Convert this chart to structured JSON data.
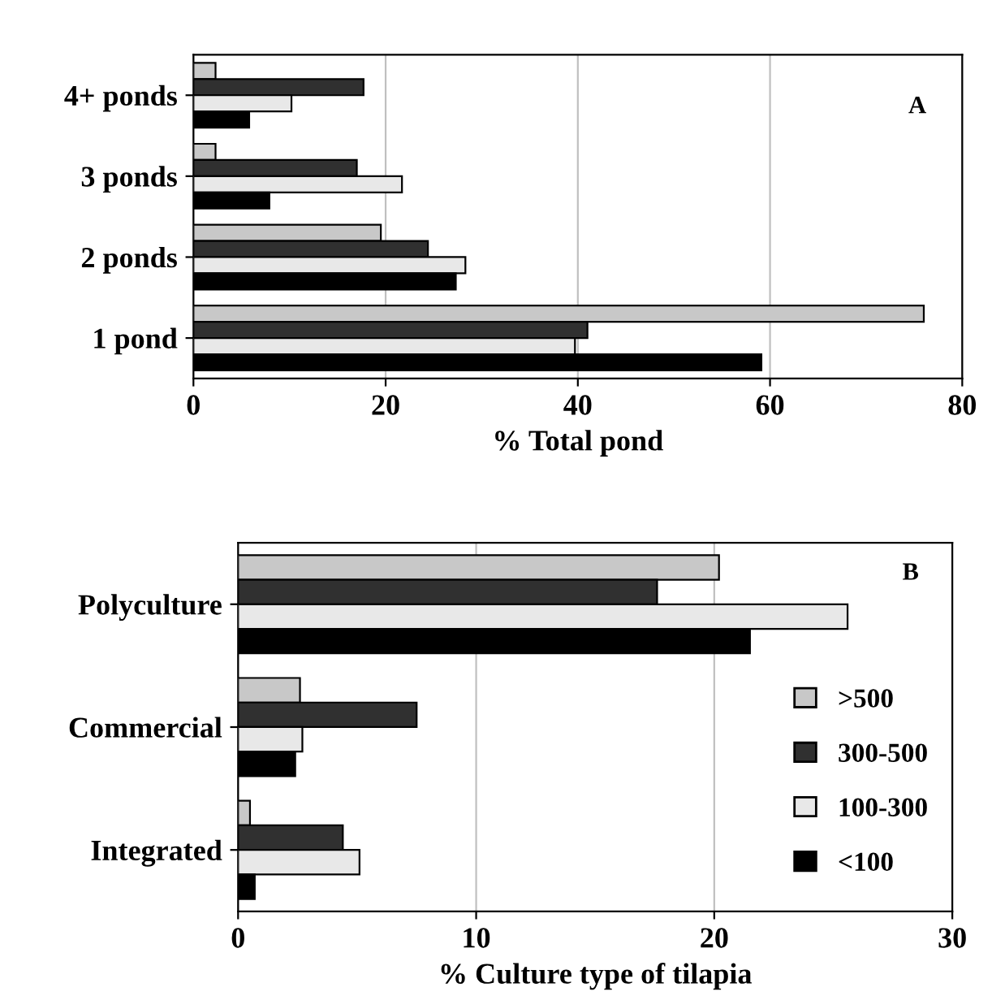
{
  "chart_data": [
    {
      "type": "bar",
      "orientation": "horizontal",
      "categories": [
        "4+ ponds",
        "3 ponds",
        "2 ponds",
        "1 pond"
      ],
      "xlabel": "% Total pond",
      "xlim": [
        0,
        80
      ],
      "xticks": [
        0,
        20,
        40,
        60,
        80
      ],
      "grid": "x",
      "legend": false,
      "annotations": [
        "A"
      ],
      "series": [
        {
          "color": "#c8c8c8",
          "values": [
            2.3,
            2.3,
            19.5,
            76
          ]
        },
        {
          "color": "#303030",
          "values": [
            17.7,
            17,
            24.4,
            41
          ]
        },
        {
          "color": "#e8e8e8",
          "values": [
            10.2,
            21.7,
            28.3,
            39.7
          ]
        },
        {
          "color": "#000000",
          "values": [
            5.8,
            7.9,
            27.3,
            59.1
          ]
        }
      ]
    },
    {
      "type": "bar",
      "orientation": "horizontal",
      "categories": [
        "Polyculture",
        "Commercial",
        "Integrated"
      ],
      "xlabel": "% Culture type of tilapia",
      "xlim": [
        0,
        30
      ],
      "xticks": [
        0,
        10,
        20,
        30
      ],
      "grid": "x",
      "legend": "right",
      "annotations": [
        "B"
      ],
      "series": [
        {
          "name": ">500",
          "color": "#c8c8c8",
          "values": [
            20.2,
            2.6,
            0.5
          ]
        },
        {
          "name": "300-500",
          "color": "#303030",
          "values": [
            17.6,
            7.5,
            4.4
          ]
        },
        {
          "name": "100-300",
          "color": "#e8e8e8",
          "values": [
            25.6,
            2.7,
            5.1
          ]
        },
        {
          "name": "<100",
          "color": "#000000",
          "values": [
            21.5,
            2.4,
            0.7
          ]
        }
      ]
    }
  ]
}
